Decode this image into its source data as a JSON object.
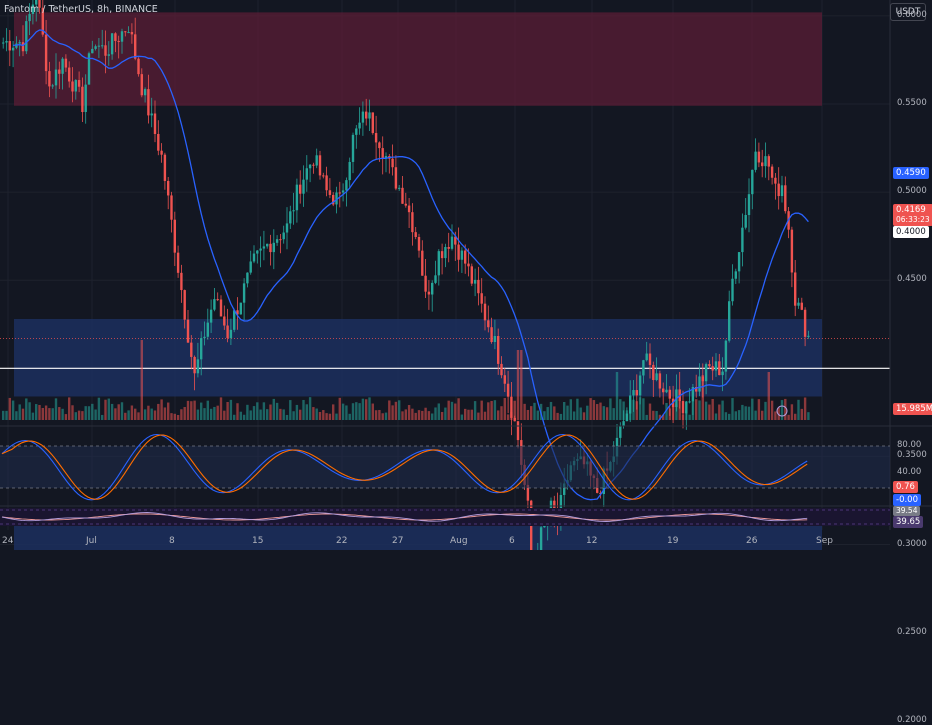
{
  "header": {
    "title": "Fantom / TetherUS, 8h, BINANCE",
    "currency_button": "USDT"
  },
  "price_axis": {
    "ticks": [
      "0.6000",
      "0.5500",
      "0.5000",
      "0.4500",
      "0.3500",
      "0.3000",
      "0.2500",
      "0.2000"
    ]
  },
  "price_tags": {
    "ma_value": "0.4590",
    "last_price": "0.4169",
    "countdown": "06:33:23",
    "horizontal_line": "0.4000",
    "volume": "15.985M"
  },
  "stoch_axis": {
    "ticks": [
      "80.00",
      "40.00"
    ],
    "k_value": "0.76",
    "d_value": "-0.00"
  },
  "rsi_axis": {
    "value_a": "39.54",
    "value_b": "39.65"
  },
  "time_axis": {
    "labels": [
      "24",
      "Jul",
      "8",
      "15",
      "22",
      "27",
      "Aug",
      "6",
      "12",
      "19",
      "26",
      "Sep"
    ]
  },
  "colors": {
    "background": "#131722",
    "up": "#26a69a",
    "down": "#ef5350",
    "ma": "#2962ff",
    "supply_zone": "#5b1e36",
    "demand_zone": "#1c2f5e"
  },
  "chart_data": {
    "type": "candlestick",
    "title": "Fantom / TetherUS, 8h, BINANCE",
    "ylim": [
      0.19,
      0.625
    ],
    "zones": [
      {
        "type": "supply",
        "from": 0.549,
        "to": 0.602
      },
      {
        "type": "demand",
        "from": 0.384,
        "to": 0.428
      },
      {
        "type": "demand",
        "from": 0.273,
        "to": 0.32
      }
    ],
    "horizontal_line": 0.4,
    "last_price": 0.4169,
    "ma_last": 0.459,
    "indicators": [
      "Stochastic RSI",
      "RSI"
    ],
    "stoch_levels": [
      80,
      20
    ],
    "path_points": [
      [
        0,
        0.585
      ],
      [
        6,
        0.585
      ],
      [
        10,
        0.615
      ],
      [
        14,
        0.56
      ],
      [
        18,
        0.575
      ],
      [
        24,
        0.55
      ],
      [
        27,
        0.585
      ],
      [
        31,
        0.58
      ],
      [
        38,
        0.595
      ],
      [
        42,
        0.56
      ],
      [
        48,
        0.52
      ],
      [
        52,
        0.47
      ],
      [
        56,
        0.42
      ],
      [
        58,
        0.395
      ],
      [
        61,
        0.42
      ],
      [
        64,
        0.44
      ],
      [
        68,
        0.42
      ],
      [
        72,
        0.44
      ],
      [
        76,
        0.46
      ],
      [
        80,
        0.47
      ],
      [
        86,
        0.48
      ],
      [
        90,
        0.505
      ],
      [
        94,
        0.52
      ],
      [
        98,
        0.5
      ],
      [
        102,
        0.495
      ],
      [
        106,
        0.53
      ],
      [
        110,
        0.545
      ],
      [
        114,
        0.53
      ],
      [
        118,
        0.51
      ],
      [
        122,
        0.495
      ],
      [
        126,
        0.47
      ],
      [
        128,
        0.44
      ],
      [
        132,
        0.465
      ],
      [
        136,
        0.475
      ],
      [
        140,
        0.46
      ],
      [
        144,
        0.44
      ],
      [
        148,
        0.42
      ],
      [
        152,
        0.395
      ],
      [
        156,
        0.36
      ],
      [
        159,
        0.32
      ],
      [
        160,
        0.275
      ],
      [
        162,
        0.3
      ],
      [
        166,
        0.32
      ],
      [
        168,
        0.315
      ],
      [
        172,
        0.345
      ],
      [
        176,
        0.345
      ],
      [
        180,
        0.33
      ],
      [
        184,
        0.345
      ],
      [
        188,
        0.37
      ],
      [
        192,
        0.39
      ],
      [
        194,
        0.405
      ],
      [
        198,
        0.395
      ],
      [
        202,
        0.385
      ],
      [
        206,
        0.38
      ],
      [
        210,
        0.39
      ],
      [
        214,
        0.4
      ],
      [
        218,
        0.4
      ],
      [
        221,
        0.45
      ],
      [
        224,
        0.48
      ],
      [
        226,
        0.5
      ],
      [
        228,
        0.525
      ],
      [
        232,
        0.515
      ],
      [
        234,
        0.5
      ],
      [
        236,
        0.505
      ],
      [
        238,
        0.48
      ],
      [
        240,
        0.44
      ],
      [
        244,
        0.418
      ]
    ]
  }
}
